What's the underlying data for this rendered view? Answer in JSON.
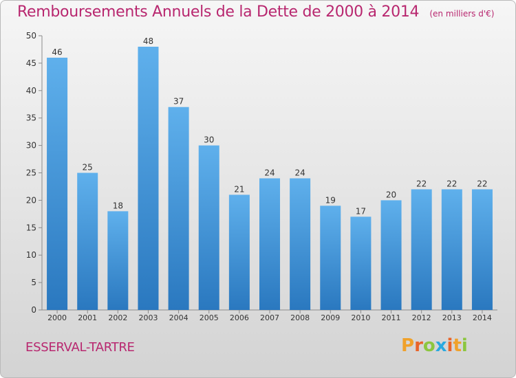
{
  "header": {
    "title": "Remboursements Annuels de la Dette de 2000 à 2014",
    "unit": "(en milliers d'€)"
  },
  "footer": {
    "commune": "ESSERVAL-TARTRE",
    "logo": [
      "P",
      "r",
      "o",
      "x",
      "i",
      "t",
      "i"
    ]
  },
  "colors": {
    "title": "#b8276f",
    "bar_top": "#5fb0ec",
    "bar_bottom": "#2a78bf",
    "logo_letters": [
      "#f0a12a",
      "#e8642a",
      "#8cc63f",
      "#2aa9e0",
      "#e8642a",
      "#f0a12a",
      "#8cc63f"
    ]
  },
  "chart_data": {
    "type": "bar",
    "title": "Remboursements Annuels de la Dette de 2000 à 2014",
    "ylabel": "(en milliers d'€)",
    "xlabel": "",
    "categories": [
      "2000",
      "2001",
      "2002",
      "2003",
      "2004",
      "2005",
      "2006",
      "2007",
      "2008",
      "2009",
      "2010",
      "2011",
      "2012",
      "2013",
      "2014"
    ],
    "values": [
      46,
      25,
      18,
      48,
      37,
      30,
      21,
      24,
      24,
      19,
      17,
      20,
      22,
      22,
      22
    ],
    "ylim": [
      0,
      50
    ],
    "yticks": [
      0,
      5,
      10,
      15,
      20,
      25,
      30,
      35,
      40,
      45,
      50
    ],
    "grid": false,
    "data_labels": true
  }
}
